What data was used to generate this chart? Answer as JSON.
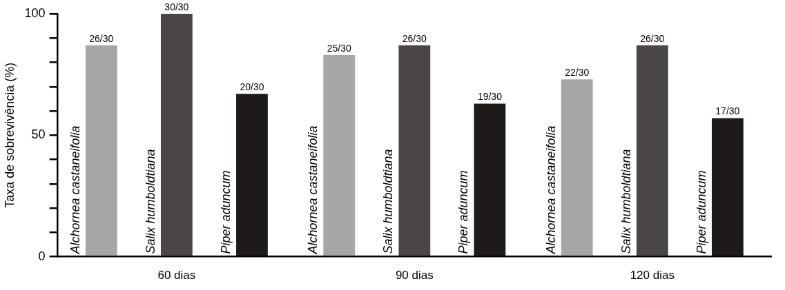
{
  "chart_data": {
    "type": "bar",
    "ylabel": "Taxa de sobrevivência (%)",
    "categories": [
      "60 dias",
      "90 dias",
      "120 dias"
    ],
    "ylim": [
      0,
      100
    ],
    "yticks": [
      0,
      {
        "value": 10,
        "label": null
      },
      {
        "value": 20,
        "label": null
      },
      {
        "value": 30,
        "label": null
      },
      {
        "value": 40,
        "label": null
      },
      50,
      {
        "value": 60,
        "label": null
      },
      {
        "value": 70,
        "label": null
      },
      {
        "value": 80,
        "label": null
      },
      {
        "value": 90,
        "label": null
      },
      100
    ],
    "legend": false,
    "series": [
      {
        "name": "Alchornea castaneifolia",
        "color": "#a6a6a6",
        "values": [
          87,
          83,
          73
        ],
        "value_labels": [
          "26/30",
          "25/30",
          "22/30"
        ]
      },
      {
        "name": "Salix humboldtiana",
        "color": "#4a4646",
        "values": [
          100,
          87,
          87
        ],
        "value_labels": [
          "30/30",
          "26/30",
          "26/30"
        ]
      },
      {
        "name": "Piper aduncum",
        "color": "#1e1a1a",
        "values": [
          67,
          63,
          57
        ],
        "value_labels": [
          "20/30",
          "19/30",
          "17/30"
        ]
      }
    ]
  }
}
